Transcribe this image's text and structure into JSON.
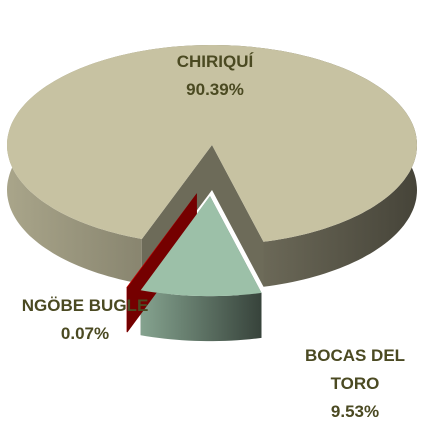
{
  "chart_data": {
    "type": "pie",
    "categories": [
      "CHIRIQUÍ",
      "BOCAS DEL TORO",
      "NGÖBE BUGLE"
    ],
    "values": [
      90.39,
      9.53,
      0.07
    ],
    "value_labels": [
      "90.39%",
      "9.53%",
      "0.07%"
    ],
    "colors": [
      "#c7c2a2",
      "#9cc0a8",
      "#d40000"
    ]
  }
}
